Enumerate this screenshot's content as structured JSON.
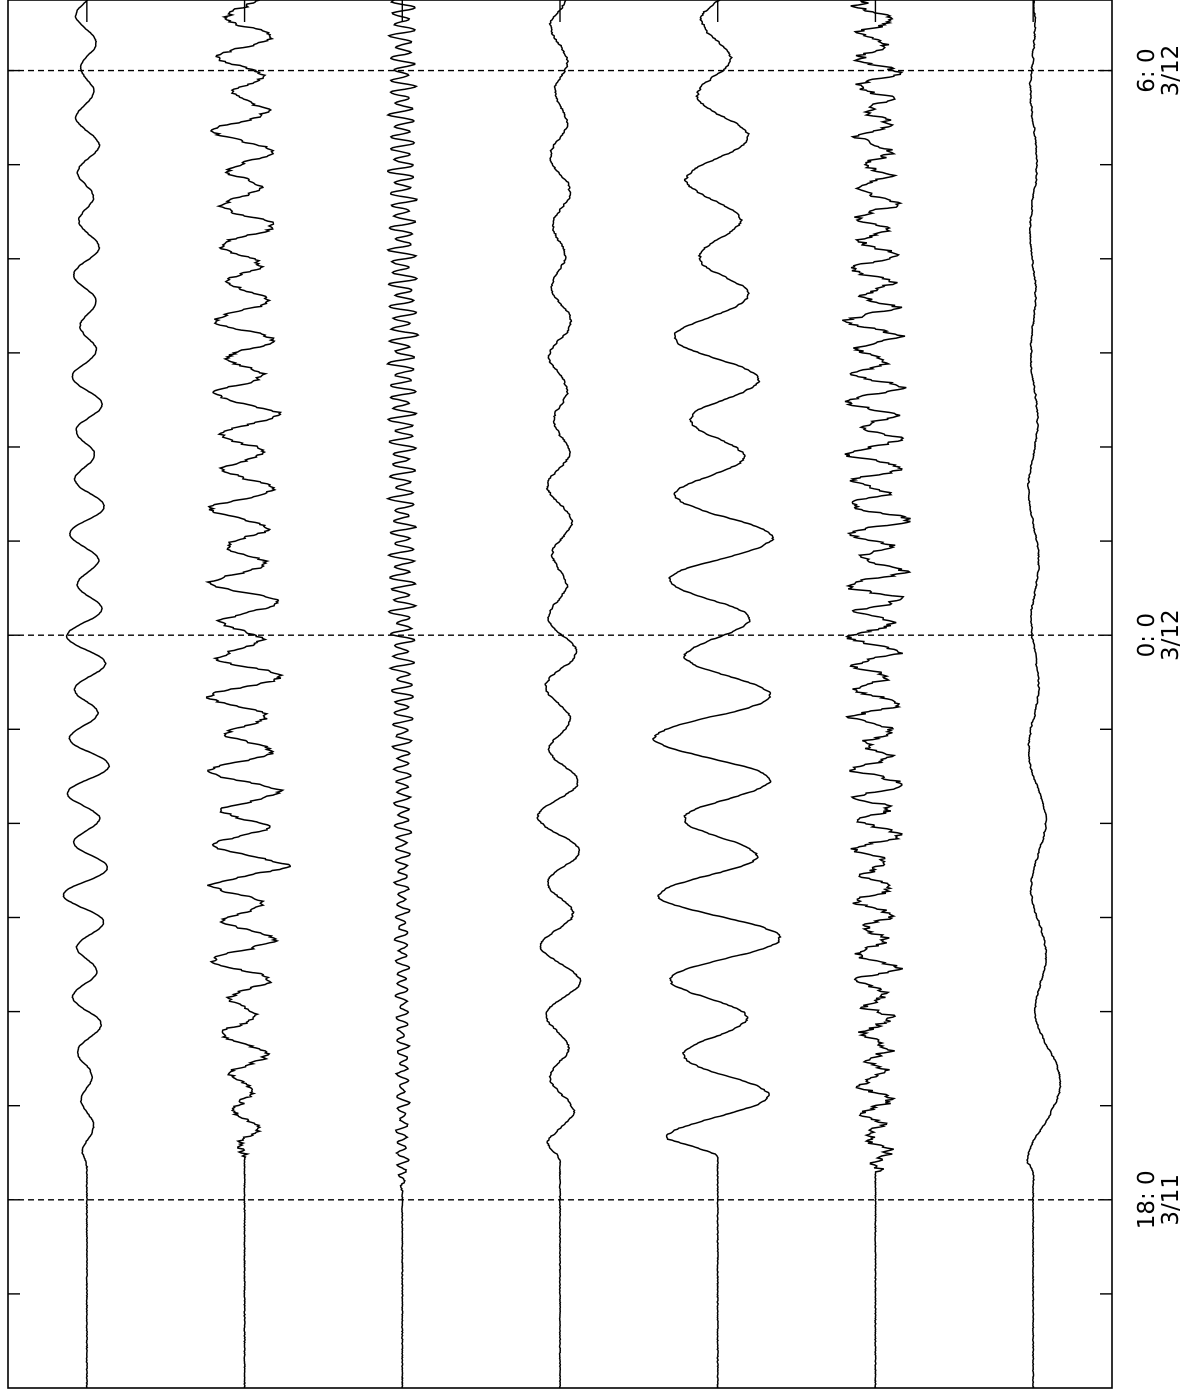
{
  "chart_data": {
    "type": "line",
    "orientation": "rotated-time-axis-vertical",
    "title": "",
    "xlabel": "",
    "ylabel": "",
    "time_axis": {
      "unit": "hours",
      "range": [
        -8,
        6.75
      ],
      "major_ticks": [
        {
          "t": -6,
          "label": "18: 0",
          "date": "3/11"
        },
        {
          "t": 0,
          "label": "0: 0",
          "date": "3/12"
        },
        {
          "t": 6,
          "label": "6: 0",
          "date": "3/12"
        }
      ],
      "minor_tick_step_hours": 1,
      "dashed_gridlines_at": [
        -6,
        0,
        6
      ]
    },
    "series": [
      {
        "onset": -5.65,
        "amplitude": 0.9,
        "period": 0.55,
        "envelope": [
          0.2,
          1.0,
          0.8,
          0.55,
          0.45
        ],
        "roughness": 0.05,
        "baseline_drift": 0
      },
      {
        "onset": -5.55,
        "amplitude": 1.5,
        "period": 0.4,
        "envelope": [
          0.3,
          1.0,
          0.85,
          0.75,
          0.65
        ],
        "roughness": 0.25,
        "baseline_drift": 0
      },
      {
        "onset": -5.9,
        "amplitude": 0.55,
        "period": 0.12,
        "envelope": [
          0.4,
          0.5,
          0.9,
          1.0,
          0.85
        ],
        "roughness": 0.2,
        "baseline_drift": 0
      },
      {
        "onset": -5.6,
        "amplitude": 0.9,
        "period": 0.7,
        "envelope": [
          0.5,
          1.0,
          0.55,
          0.45,
          0.4
        ],
        "roughness": 0.1,
        "baseline_drift": 0
      },
      {
        "onset": -5.55,
        "amplitude": 2.5,
        "period": 0.85,
        "envelope": [
          0.75,
          1.0,
          0.85,
          0.6,
          0.35
        ],
        "roughness": 0.05,
        "baseline_drift": 0
      },
      {
        "onset": -5.7,
        "amplitude": 1.1,
        "period": 0.28,
        "envelope": [
          0.45,
          0.7,
          1.0,
          0.85,
          0.6
        ],
        "roughness": 0.55,
        "baseline_drift": 0
      },
      {
        "onset": -5.8,
        "amplitude": 0.6,
        "period": 1.4,
        "envelope": [
          1.0,
          0.6,
          0.35,
          0.25,
          0.2
        ],
        "roughness": 0.1,
        "baseline_drift": -0.9
      }
    ],
    "grid": true,
    "legend": "none"
  }
}
